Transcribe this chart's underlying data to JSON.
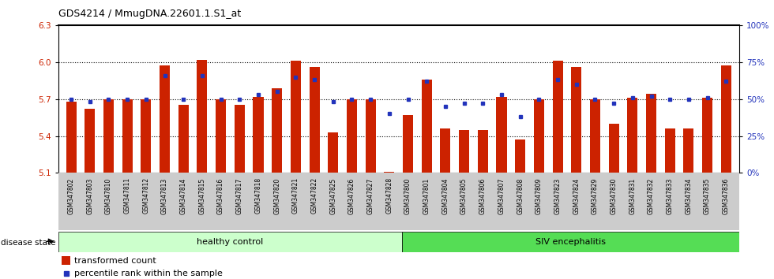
{
  "title": "GDS4214 / MmugDNA.22601.1.S1_at",
  "samples": [
    "GSM347802",
    "GSM347803",
    "GSM347810",
    "GSM347811",
    "GSM347812",
    "GSM347813",
    "GSM347814",
    "GSM347815",
    "GSM347816",
    "GSM347817",
    "GSM347818",
    "GSM347820",
    "GSM347821",
    "GSM347822",
    "GSM347825",
    "GSM347826",
    "GSM347827",
    "GSM347828",
    "GSM347800",
    "GSM347801",
    "GSM347804",
    "GSM347805",
    "GSM347806",
    "GSM347807",
    "GSM347808",
    "GSM347809",
    "GSM347823",
    "GSM347824",
    "GSM347829",
    "GSM347830",
    "GSM347831",
    "GSM347832",
    "GSM347833",
    "GSM347834",
    "GSM347835",
    "GSM347836"
  ],
  "bar_values": [
    5.68,
    5.62,
    5.7,
    5.7,
    5.7,
    5.97,
    5.65,
    6.02,
    5.7,
    5.65,
    5.72,
    5.79,
    6.01,
    5.96,
    5.43,
    5.7,
    5.7,
    5.11,
    5.57,
    5.86,
    5.46,
    5.45,
    5.45,
    5.72,
    5.37,
    5.7,
    6.01,
    5.96,
    5.7,
    5.5,
    5.71,
    5.74,
    5.46,
    5.46,
    5.71,
    5.97
  ],
  "percentile_values": [
    50,
    48,
    50,
    50,
    50,
    66,
    50,
    66,
    50,
    50,
    53,
    55,
    65,
    63,
    48,
    50,
    50,
    40,
    50,
    62,
    45,
    47,
    47,
    53,
    38,
    50,
    63,
    60,
    50,
    47,
    51,
    52,
    50,
    50,
    51,
    62
  ],
  "healthy_count": 18,
  "ylim_left": [
    5.1,
    6.3
  ],
  "ylim_right": [
    0,
    100
  ],
  "yticks_left": [
    5.1,
    5.4,
    5.7,
    6.0,
    6.3
  ],
  "yticks_right": [
    0,
    25,
    50,
    75,
    100
  ],
  "ytick_labels_right": [
    "0%",
    "25%",
    "50%",
    "75%",
    "100%"
  ],
  "bar_color": "#cc2200",
  "dot_color": "#2233bb",
  "healthy_bg": "#ccffcc",
  "siv_bg": "#55dd55",
  "xticklabel_bg": "#cccccc",
  "dotted_lines": [
    5.4,
    5.7,
    6.0
  ],
  "group1_label": "healthy control",
  "group2_label": "SIV encephalitis",
  "legend_bar_label": "transformed count",
  "legend_dot_label": "percentile rank within the sample",
  "disease_state_label": "disease state"
}
